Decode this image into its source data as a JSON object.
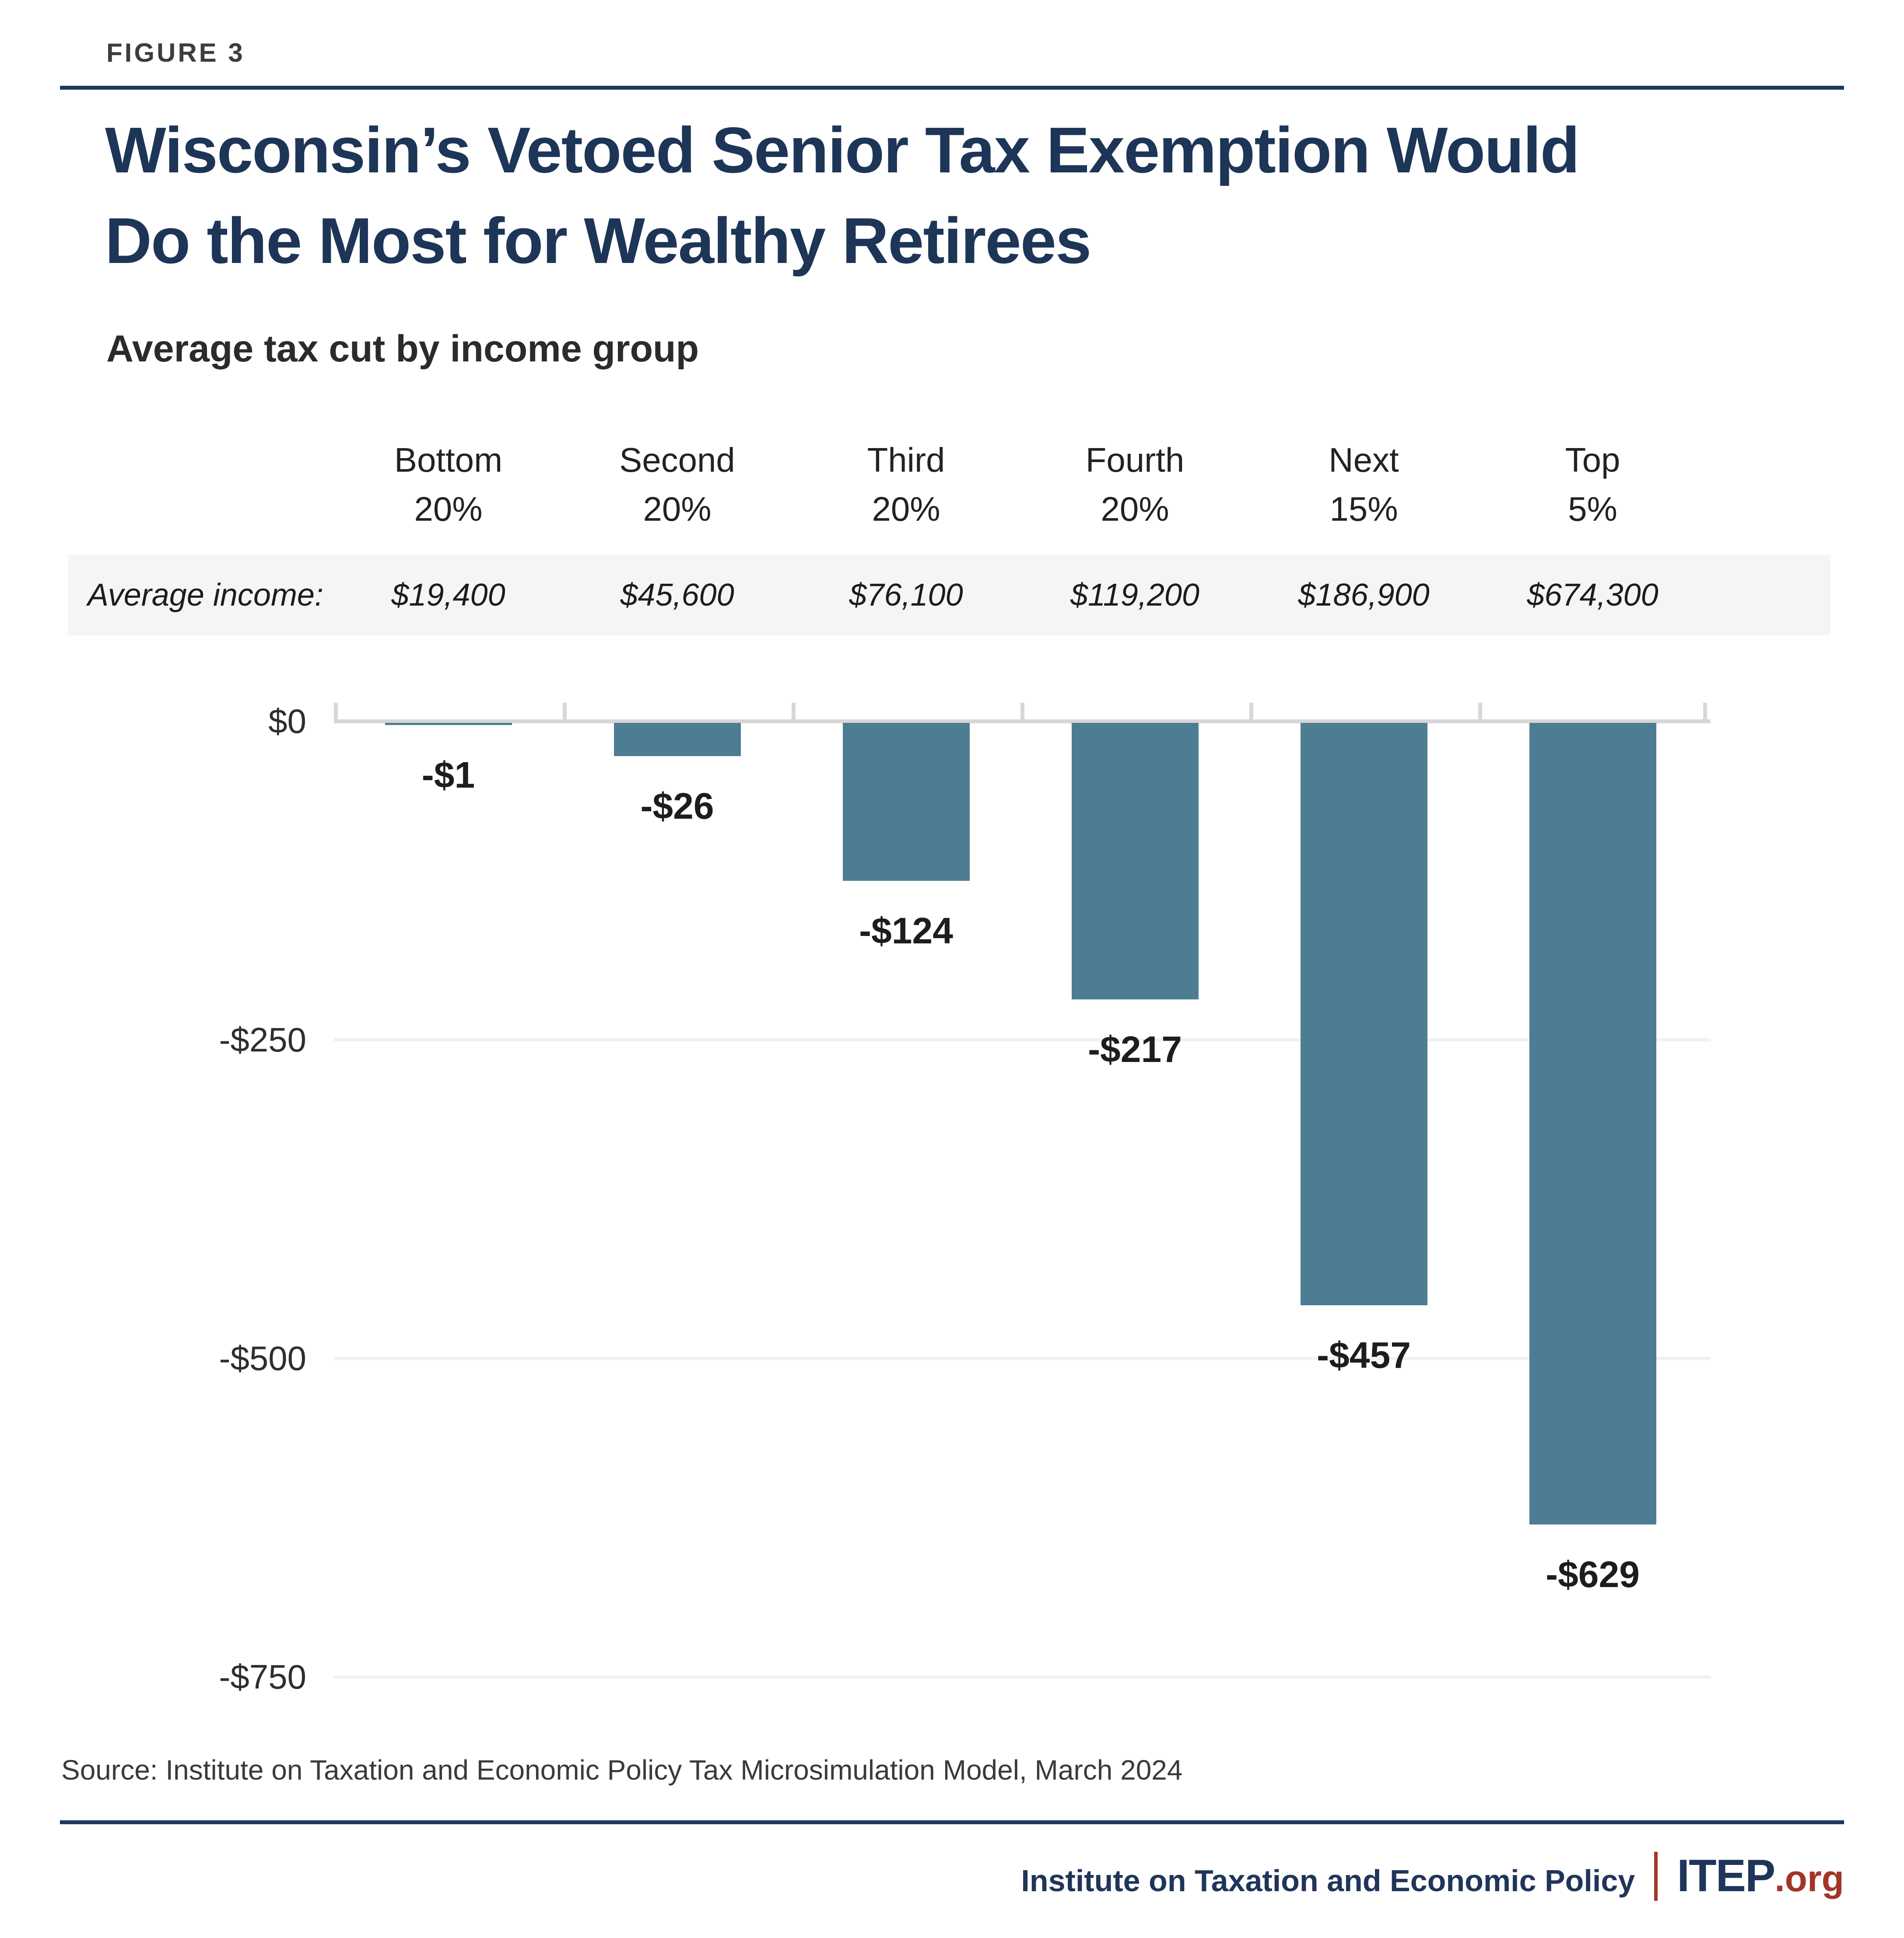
{
  "figure_label": "FIGURE 3",
  "title_line1": "Wisconsin’s Vetoed Senior Tax Exemption Would",
  "title_line2": "Do the Most for Wealthy Retirees",
  "subtitle": "Average tax cut by income group",
  "income_row_label": "Average income:",
  "source": "Source: Institute on Taxation and Economic Policy Tax Microsimulation Model, March 2024",
  "footer": {
    "org": "Institute on Taxation and Economic Policy",
    "separator": "|",
    "brand": "ITEP",
    "brand_suffix": ".org"
  },
  "colors": {
    "navy": "#1e3a5f",
    "title_navy": "#1d3557",
    "bar": "#4d7d93",
    "brand_red": "#a33528",
    "income_band_bg": "#f4f5f7",
    "axis_gray": "#d7d7d7",
    "gridline_gray": "#f0f1f2"
  },
  "chart_data": {
    "type": "bar",
    "title": "Wisconsin’s Vetoed Senior Tax Exemption Would Do the Most for Wealthy Retirees",
    "subtitle": "Average tax cut by income group",
    "categories": [
      "Bottom 20%",
      "Second 20%",
      "Third 20%",
      "Fourth 20%",
      "Next 15%",
      "Top 5%"
    ],
    "average_incomes": [
      "$19,400",
      "$45,600",
      "$76,100",
      "$119,200",
      "$186,900",
      "$674,300"
    ],
    "values": [
      -1,
      -26,
      -124,
      -217,
      -457,
      -629
    ],
    "bar_labels": [
      "-$1",
      "-$26",
      "-$124",
      "-$217",
      "-$457",
      "-$629"
    ],
    "y_ticks": [
      {
        "label": "$0",
        "value": 0
      },
      {
        "label": "-$250",
        "value": -250
      },
      {
        "label": "-$500",
        "value": -500
      },
      {
        "label": "-$750",
        "value": -750
      }
    ],
    "ylim": [
      0,
      -750
    ],
    "xlabel": "",
    "ylabel": "",
    "legend": "none",
    "grid": "faint horizontal gridlines at y ticks",
    "bar_color": "#4d7d93"
  }
}
